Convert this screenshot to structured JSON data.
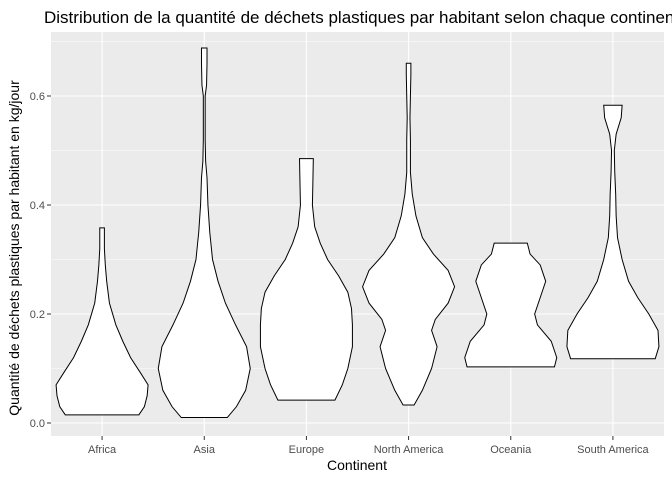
{
  "chart_data": {
    "type": "violin",
    "title": "Distribution de la quantité de déchets plastiques par habitant selon chaque continent",
    "xlabel": "Continent",
    "ylabel": "Quantité de déchets plastiques par habitant en kg/jour",
    "categories": [
      "Africa",
      "Asia",
      "Europe",
      "North America",
      "Oceania",
      "South America"
    ],
    "ylim": [
      -0.02,
      0.72
    ],
    "yticks": [
      0.0,
      0.2,
      0.4,
      0.6
    ],
    "ytick_labels": [
      "0.0",
      "0.2",
      "0.4",
      "0.6"
    ],
    "grid": true,
    "background": "#ebebeb",
    "violins": [
      {
        "name": "Africa",
        "min": 0.015,
        "max": 0.358,
        "profile": [
          [
            0.015,
            0.8
          ],
          [
            0.03,
            0.92
          ],
          [
            0.05,
            0.98
          ],
          [
            0.07,
            1.0
          ],
          [
            0.09,
            0.85
          ],
          [
            0.12,
            0.62
          ],
          [
            0.15,
            0.45
          ],
          [
            0.18,
            0.3
          ],
          [
            0.22,
            0.16
          ],
          [
            0.26,
            0.1
          ],
          [
            0.29,
            0.07
          ],
          [
            0.32,
            0.05
          ],
          [
            0.358,
            0.05
          ]
        ]
      },
      {
        "name": "Asia",
        "min": 0.01,
        "max": 0.688,
        "profile": [
          [
            0.01,
            0.5
          ],
          [
            0.03,
            0.7
          ],
          [
            0.06,
            0.9
          ],
          [
            0.1,
            1.0
          ],
          [
            0.14,
            0.92
          ],
          [
            0.18,
            0.68
          ],
          [
            0.22,
            0.46
          ],
          [
            0.26,
            0.3
          ],
          [
            0.3,
            0.18
          ],
          [
            0.35,
            0.12
          ],
          [
            0.4,
            0.08
          ],
          [
            0.45,
            0.06
          ],
          [
            0.48,
            0.03
          ],
          [
            0.52,
            0.02
          ],
          [
            0.6,
            0.02
          ],
          [
            0.62,
            0.05
          ],
          [
            0.66,
            0.06
          ],
          [
            0.688,
            0.06
          ]
        ]
      },
      {
        "name": "Europe",
        "min": 0.042,
        "max": 0.485,
        "profile": [
          [
            0.042,
            0.62
          ],
          [
            0.07,
            0.78
          ],
          [
            0.1,
            0.9
          ],
          [
            0.14,
            1.0
          ],
          [
            0.18,
            1.0
          ],
          [
            0.21,
            0.98
          ],
          [
            0.24,
            0.9
          ],
          [
            0.27,
            0.7
          ],
          [
            0.3,
            0.46
          ],
          [
            0.33,
            0.3
          ],
          [
            0.36,
            0.18
          ],
          [
            0.4,
            0.13
          ],
          [
            0.44,
            0.14
          ],
          [
            0.485,
            0.15
          ]
        ]
      },
      {
        "name": "North America",
        "min": 0.033,
        "max": 0.66,
        "profile": [
          [
            0.033,
            0.12
          ],
          [
            0.06,
            0.3
          ],
          [
            0.1,
            0.5
          ],
          [
            0.14,
            0.62
          ],
          [
            0.17,
            0.5
          ],
          [
            0.19,
            0.58
          ],
          [
            0.22,
            0.86
          ],
          [
            0.25,
            1.0
          ],
          [
            0.28,
            0.86
          ],
          [
            0.31,
            0.54
          ],
          [
            0.34,
            0.3
          ],
          [
            0.38,
            0.16
          ],
          [
            0.42,
            0.08
          ],
          [
            0.46,
            0.04
          ],
          [
            0.52,
            0.04
          ],
          [
            0.56,
            0.03
          ],
          [
            0.6,
            0.04
          ],
          [
            0.64,
            0.05
          ],
          [
            0.66,
            0.05
          ]
        ]
      },
      {
        "name": "Oceania",
        "min": 0.103,
        "max": 0.33,
        "profile": [
          [
            0.103,
            0.95
          ],
          [
            0.12,
            1.0
          ],
          [
            0.15,
            0.88
          ],
          [
            0.18,
            0.58
          ],
          [
            0.2,
            0.52
          ],
          [
            0.23,
            0.64
          ],
          [
            0.26,
            0.76
          ],
          [
            0.29,
            0.64
          ],
          [
            0.31,
            0.42
          ],
          [
            0.33,
            0.36
          ]
        ]
      },
      {
        "name": "South America",
        "min": 0.118,
        "max": 0.583,
        "profile": [
          [
            0.118,
            0.92
          ],
          [
            0.14,
            1.0
          ],
          [
            0.17,
            0.98
          ],
          [
            0.2,
            0.78
          ],
          [
            0.23,
            0.54
          ],
          [
            0.26,
            0.34
          ],
          [
            0.3,
            0.2
          ],
          [
            0.34,
            0.1
          ],
          [
            0.38,
            0.07
          ],
          [
            0.42,
            0.06
          ],
          [
            0.46,
            0.04
          ],
          [
            0.5,
            0.03
          ],
          [
            0.53,
            0.07
          ],
          [
            0.56,
            0.18
          ],
          [
            0.583,
            0.2
          ]
        ]
      }
    ]
  }
}
